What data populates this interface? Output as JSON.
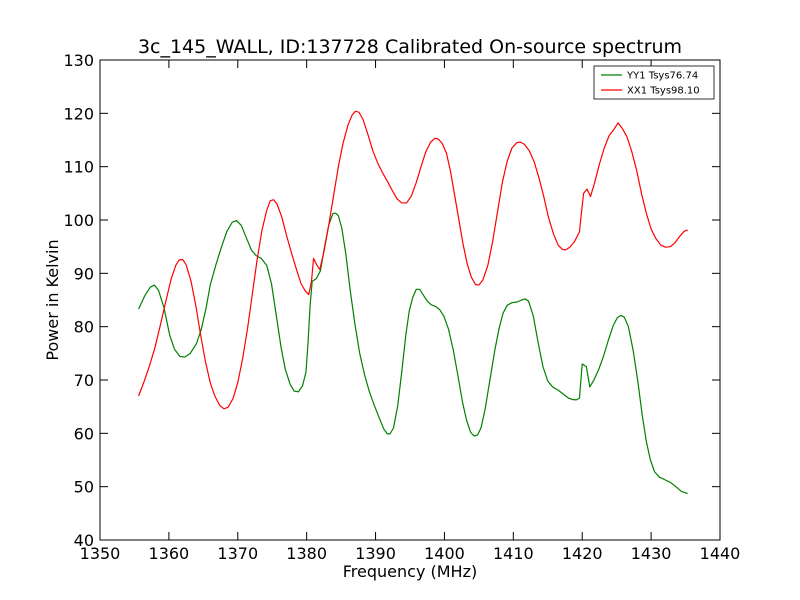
{
  "chart_data": {
    "type": "line",
    "title": "3c_145_WALL, ID:137728 Calibrated On-source spectrum",
    "xlabel": "Frequency (MHz)",
    "ylabel": "Power in Kelvin",
    "xlim": [
      1350,
      1440
    ],
    "ylim": [
      40,
      130
    ],
    "xticks": [
      1350,
      1360,
      1370,
      1380,
      1390,
      1400,
      1410,
      1420,
      1430,
      1440
    ],
    "yticks": [
      40,
      50,
      60,
      70,
      80,
      90,
      100,
      110,
      120,
      130
    ],
    "grid": false,
    "legend_position": "top-right",
    "series": [
      {
        "name": "YY1 Tsys76.74",
        "color": "#008000",
        "points": [
          [
            1355.6,
            83.3
          ],
          [
            1356.5,
            85.8
          ],
          [
            1357.3,
            87.4
          ],
          [
            1357.9,
            87.8
          ],
          [
            1358.5,
            86.8
          ],
          [
            1359.3,
            83.5
          ],
          [
            1360.1,
            78.5
          ],
          [
            1360.8,
            75.8
          ],
          [
            1361.6,
            74.4
          ],
          [
            1362.3,
            74.3
          ],
          [
            1363.1,
            75.0
          ],
          [
            1364.0,
            76.8
          ],
          [
            1364.7,
            79.5
          ],
          [
            1365.4,
            83.5
          ],
          [
            1366.0,
            87.8
          ],
          [
            1366.8,
            91.5
          ],
          [
            1367.6,
            94.8
          ],
          [
            1368.4,
            97.8
          ],
          [
            1369.2,
            99.6
          ],
          [
            1369.8,
            99.9
          ],
          [
            1370.5,
            99.0
          ],
          [
            1371.3,
            96.5
          ],
          [
            1372.0,
            94.3
          ],
          [
            1372.7,
            93.3
          ],
          [
            1373.4,
            92.8
          ],
          [
            1374.2,
            91.5
          ],
          [
            1374.9,
            88.0
          ],
          [
            1375.6,
            82.0
          ],
          [
            1376.3,
            76.0
          ],
          [
            1376.9,
            72.0
          ],
          [
            1377.6,
            69.2
          ],
          [
            1378.2,
            67.9
          ],
          [
            1378.8,
            67.8
          ],
          [
            1379.4,
            68.9
          ],
          [
            1379.9,
            71.5
          ],
          [
            1380.2,
            77.0
          ],
          [
            1380.5,
            84.0
          ],
          [
            1380.8,
            88.5
          ],
          [
            1381.4,
            89.0
          ],
          [
            1382.0,
            90.5
          ],
          [
            1382.6,
            95.0
          ],
          [
            1383.2,
            99.0
          ],
          [
            1383.8,
            101.2
          ],
          [
            1384.2,
            101.3
          ],
          [
            1384.6,
            100.8
          ],
          [
            1385.1,
            98.5
          ],
          [
            1385.7,
            93.5
          ],
          [
            1386.3,
            87.0
          ],
          [
            1387.0,
            80.5
          ],
          [
            1387.7,
            75.0
          ],
          [
            1388.4,
            71.0
          ],
          [
            1389.1,
            67.8
          ],
          [
            1389.8,
            65.3
          ],
          [
            1390.5,
            63.0
          ],
          [
            1391.2,
            60.8
          ],
          [
            1391.7,
            59.9
          ],
          [
            1392.1,
            59.9
          ],
          [
            1392.6,
            61.0
          ],
          [
            1393.2,
            65.0
          ],
          [
            1393.8,
            71.5
          ],
          [
            1394.4,
            78.5
          ],
          [
            1394.9,
            83.0
          ],
          [
            1395.4,
            85.5
          ],
          [
            1395.9,
            87.0
          ],
          [
            1396.4,
            87.0
          ],
          [
            1396.9,
            86.0
          ],
          [
            1397.5,
            84.8
          ],
          [
            1398.1,
            84.1
          ],
          [
            1398.7,
            83.8
          ],
          [
            1399.3,
            83.2
          ],
          [
            1399.9,
            82.0
          ],
          [
            1400.6,
            79.5
          ],
          [
            1401.3,
            75.5
          ],
          [
            1402.0,
            70.5
          ],
          [
            1402.6,
            66.0
          ],
          [
            1403.2,
            62.5
          ],
          [
            1403.8,
            60.2
          ],
          [
            1404.3,
            59.5
          ],
          [
            1404.8,
            59.7
          ],
          [
            1405.3,
            61.0
          ],
          [
            1405.9,
            64.5
          ],
          [
            1406.6,
            70.0
          ],
          [
            1407.3,
            75.5
          ],
          [
            1407.9,
            79.5
          ],
          [
            1408.5,
            82.5
          ],
          [
            1409.1,
            84.0
          ],
          [
            1409.8,
            84.5
          ],
          [
            1410.5,
            84.6
          ],
          [
            1411.2,
            85.0
          ],
          [
            1411.7,
            85.2
          ],
          [
            1412.2,
            84.8
          ],
          [
            1412.9,
            82.0
          ],
          [
            1413.6,
            77.0
          ],
          [
            1414.3,
            72.5
          ],
          [
            1415.0,
            69.8
          ],
          [
            1415.7,
            68.7
          ],
          [
            1416.5,
            68.1
          ],
          [
            1417.3,
            67.3
          ],
          [
            1418.0,
            66.6
          ],
          [
            1418.7,
            66.3
          ],
          [
            1419.2,
            66.3
          ],
          [
            1419.6,
            66.6
          ],
          [
            1419.8,
            69.8
          ],
          [
            1420.0,
            73.0
          ],
          [
            1420.6,
            72.5
          ],
          [
            1421.1,
            68.7
          ],
          [
            1421.7,
            70.0
          ],
          [
            1422.4,
            72.0
          ],
          [
            1423.1,
            74.5
          ],
          [
            1423.8,
            77.5
          ],
          [
            1424.5,
            80.2
          ],
          [
            1425.1,
            81.7
          ],
          [
            1425.6,
            82.1
          ],
          [
            1426.1,
            81.8
          ],
          [
            1426.7,
            80.0
          ],
          [
            1427.4,
            75.5
          ],
          [
            1428.1,
            69.5
          ],
          [
            1428.7,
            63.5
          ],
          [
            1429.3,
            58.5
          ],
          [
            1429.9,
            55.0
          ],
          [
            1430.5,
            52.8
          ],
          [
            1431.2,
            51.8
          ],
          [
            1432.0,
            51.3
          ],
          [
            1432.8,
            50.8
          ],
          [
            1433.6,
            50.0
          ],
          [
            1434.4,
            49.1
          ],
          [
            1435.3,
            48.7
          ]
        ]
      },
      {
        "name": "XX1 Tsys98.10",
        "color": "#ff0000",
        "points": [
          [
            1355.6,
            67.0
          ],
          [
            1356.4,
            69.7
          ],
          [
            1357.2,
            72.7
          ],
          [
            1358.0,
            76.2
          ],
          [
            1358.8,
            80.5
          ],
          [
            1359.6,
            85.0
          ],
          [
            1360.3,
            88.8
          ],
          [
            1361.0,
            91.5
          ],
          [
            1361.5,
            92.5
          ],
          [
            1362.0,
            92.6
          ],
          [
            1362.5,
            91.6
          ],
          [
            1363.2,
            88.6
          ],
          [
            1363.9,
            84.0
          ],
          [
            1364.6,
            78.5
          ],
          [
            1365.3,
            73.5
          ],
          [
            1366.0,
            69.5
          ],
          [
            1366.7,
            66.9
          ],
          [
            1367.4,
            65.2
          ],
          [
            1368.0,
            64.6
          ],
          [
            1368.6,
            64.9
          ],
          [
            1369.3,
            66.5
          ],
          [
            1370.0,
            69.5
          ],
          [
            1370.7,
            74.0
          ],
          [
            1371.4,
            79.5
          ],
          [
            1372.1,
            86.0
          ],
          [
            1372.8,
            92.5
          ],
          [
            1373.5,
            98.0
          ],
          [
            1374.2,
            101.8
          ],
          [
            1374.7,
            103.6
          ],
          [
            1375.2,
            103.8
          ],
          [
            1375.7,
            103.0
          ],
          [
            1376.4,
            100.5
          ],
          [
            1377.1,
            97.0
          ],
          [
            1377.8,
            93.8
          ],
          [
            1378.5,
            90.8
          ],
          [
            1379.2,
            88.0
          ],
          [
            1379.8,
            86.7
          ],
          [
            1380.3,
            86.0
          ],
          [
            1380.7,
            88.5
          ],
          [
            1381.0,
            92.8
          ],
          [
            1381.5,
            91.5
          ],
          [
            1381.9,
            90.7
          ],
          [
            1382.5,
            94.0
          ],
          [
            1383.2,
            99.0
          ],
          [
            1383.9,
            104.5
          ],
          [
            1384.6,
            110.0
          ],
          [
            1385.3,
            114.5
          ],
          [
            1386.0,
            117.8
          ],
          [
            1386.6,
            119.7
          ],
          [
            1387.1,
            120.4
          ],
          [
            1387.6,
            120.2
          ],
          [
            1388.2,
            118.8
          ],
          [
            1388.9,
            116.0
          ],
          [
            1389.6,
            113.0
          ],
          [
            1390.3,
            110.7
          ],
          [
            1391.0,
            108.9
          ],
          [
            1391.7,
            107.3
          ],
          [
            1392.4,
            105.6
          ],
          [
            1393.1,
            104.0
          ],
          [
            1393.8,
            103.2
          ],
          [
            1394.5,
            103.2
          ],
          [
            1395.2,
            104.5
          ],
          [
            1395.9,
            107.0
          ],
          [
            1396.6,
            110.0
          ],
          [
            1397.3,
            112.8
          ],
          [
            1398.0,
            114.6
          ],
          [
            1398.6,
            115.3
          ],
          [
            1399.1,
            115.2
          ],
          [
            1399.7,
            114.3
          ],
          [
            1400.3,
            112.5
          ],
          [
            1400.9,
            109.0
          ],
          [
            1401.5,
            104.5
          ],
          [
            1402.1,
            100.0
          ],
          [
            1402.7,
            95.5
          ],
          [
            1403.3,
            91.8
          ],
          [
            1403.9,
            89.3
          ],
          [
            1404.5,
            87.9
          ],
          [
            1405.0,
            87.8
          ],
          [
            1405.6,
            88.8
          ],
          [
            1406.3,
            91.5
          ],
          [
            1407.0,
            96.0
          ],
          [
            1407.7,
            101.5
          ],
          [
            1408.4,
            107.0
          ],
          [
            1409.1,
            111.0
          ],
          [
            1409.8,
            113.5
          ],
          [
            1410.5,
            114.5
          ],
          [
            1411.0,
            114.6
          ],
          [
            1411.6,
            114.2
          ],
          [
            1412.3,
            113.0
          ],
          [
            1413.0,
            111.0
          ],
          [
            1413.7,
            108.0
          ],
          [
            1414.4,
            104.5
          ],
          [
            1415.1,
            100.5
          ],
          [
            1415.8,
            97.5
          ],
          [
            1416.5,
            95.3
          ],
          [
            1417.1,
            94.5
          ],
          [
            1417.6,
            94.4
          ],
          [
            1418.2,
            94.9
          ],
          [
            1418.9,
            96.0
          ],
          [
            1419.6,
            97.8
          ],
          [
            1419.9,
            101.5
          ],
          [
            1420.2,
            105.0
          ],
          [
            1420.7,
            105.8
          ],
          [
            1421.2,
            104.4
          ],
          [
            1421.8,
            107.0
          ],
          [
            1422.5,
            110.5
          ],
          [
            1423.2,
            113.5
          ],
          [
            1423.9,
            115.8
          ],
          [
            1424.6,
            117.0
          ],
          [
            1425.2,
            118.2
          ],
          [
            1425.8,
            117.2
          ],
          [
            1426.5,
            115.6
          ],
          [
            1427.2,
            112.8
          ],
          [
            1427.9,
            109.3
          ],
          [
            1428.6,
            105.0
          ],
          [
            1429.3,
            101.3
          ],
          [
            1430.0,
            98.3
          ],
          [
            1430.7,
            96.5
          ],
          [
            1431.4,
            95.3
          ],
          [
            1432.1,
            94.9
          ],
          [
            1432.8,
            95.0
          ],
          [
            1433.5,
            95.8
          ],
          [
            1434.2,
            97.0
          ],
          [
            1434.8,
            97.9
          ],
          [
            1435.3,
            98.1
          ]
        ]
      }
    ]
  }
}
